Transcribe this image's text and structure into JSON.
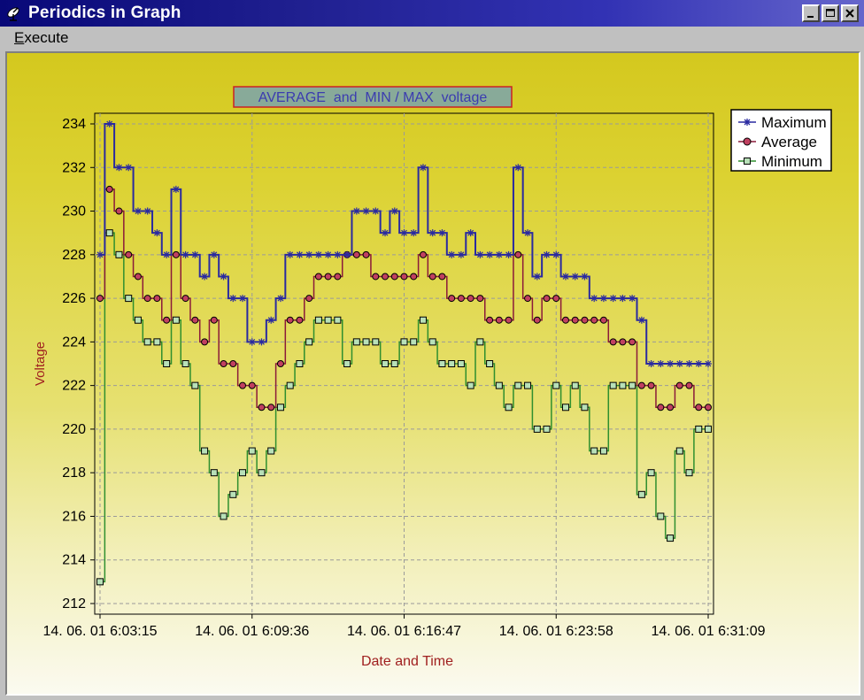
{
  "window": {
    "title": "Periodics in Graph",
    "icon": "satellite-dish-icon",
    "buttons": [
      "minimize-icon",
      "maximize-icon",
      "close-icon"
    ]
  },
  "menu": {
    "items": [
      {
        "label": "Execute",
        "mnemonic": "E",
        "rest": "xecute"
      }
    ]
  },
  "chart_data": {
    "type": "line",
    "title": "AVERAGE  and  MIN / MAX  voltage",
    "xlabel": "Date and Time",
    "ylabel": "Voltage",
    "ylim": [
      212,
      234
    ],
    "yticks": [
      212,
      214,
      216,
      218,
      220,
      222,
      224,
      226,
      228,
      230,
      232,
      234
    ],
    "xticks": [
      "14. 06. 01 6:03:15",
      "14. 06. 01 6:09:36",
      "14. 06. 01 6:16:47",
      "14. 06. 01 6:23:58",
      "14. 06. 01 6:31:09"
    ],
    "grid": true,
    "legend_position": "top-right",
    "colors": {
      "maximum": "#2a2aa0",
      "average": "#8b1a3a",
      "minimum": "#2f8f2f",
      "title_border": "#cc2222",
      "title_text": "#3b3bb0",
      "axis_label": "#a02020"
    },
    "series": [
      {
        "name": "Maximum",
        "marker": "star",
        "values": [
          228,
          234,
          232,
          232,
          230,
          230,
          229,
          228,
          231,
          228,
          228,
          227,
          228,
          227,
          226,
          226,
          224,
          224,
          225,
          226,
          228,
          228,
          228,
          228,
          228,
          228,
          228,
          230,
          230,
          230,
          229,
          230,
          229,
          229,
          232,
          229,
          229,
          228,
          228,
          229,
          228,
          228,
          228,
          228,
          232,
          229,
          227,
          228,
          228,
          227,
          227,
          227,
          226,
          226,
          226,
          226,
          226,
          225,
          223,
          223,
          223,
          223,
          223,
          223,
          223
        ]
      },
      {
        "name": "Average",
        "marker": "circle",
        "values": [
          226,
          231,
          230,
          228,
          227,
          226,
          226,
          225,
          228,
          226,
          225,
          224,
          225,
          223,
          223,
          222,
          222,
          221,
          221,
          223,
          225,
          225,
          226,
          227,
          227,
          227,
          228,
          228,
          228,
          227,
          227,
          227,
          227,
          227,
          228,
          227,
          227,
          226,
          226,
          226,
          226,
          225,
          225,
          225,
          228,
          226,
          225,
          226,
          226,
          225,
          225,
          225,
          225,
          225,
          224,
          224,
          224,
          222,
          222,
          221,
          221,
          222,
          222,
          221,
          221
        ]
      },
      {
        "name": "Minimum",
        "marker": "square",
        "values": [
          213,
          229,
          228,
          226,
          225,
          224,
          224,
          223,
          225,
          223,
          222,
          219,
          218,
          216,
          217,
          218,
          219,
          218,
          219,
          221,
          222,
          223,
          224,
          225,
          225,
          225,
          223,
          224,
          224,
          224,
          223,
          223,
          224,
          224,
          225,
          224,
          223,
          223,
          223,
          222,
          224,
          223,
          222,
          221,
          222,
          222,
          220,
          220,
          222,
          221,
          222,
          221,
          219,
          219,
          222,
          222,
          222,
          217,
          218,
          216,
          215,
          219,
          218,
          220,
          220
        ]
      }
    ]
  }
}
